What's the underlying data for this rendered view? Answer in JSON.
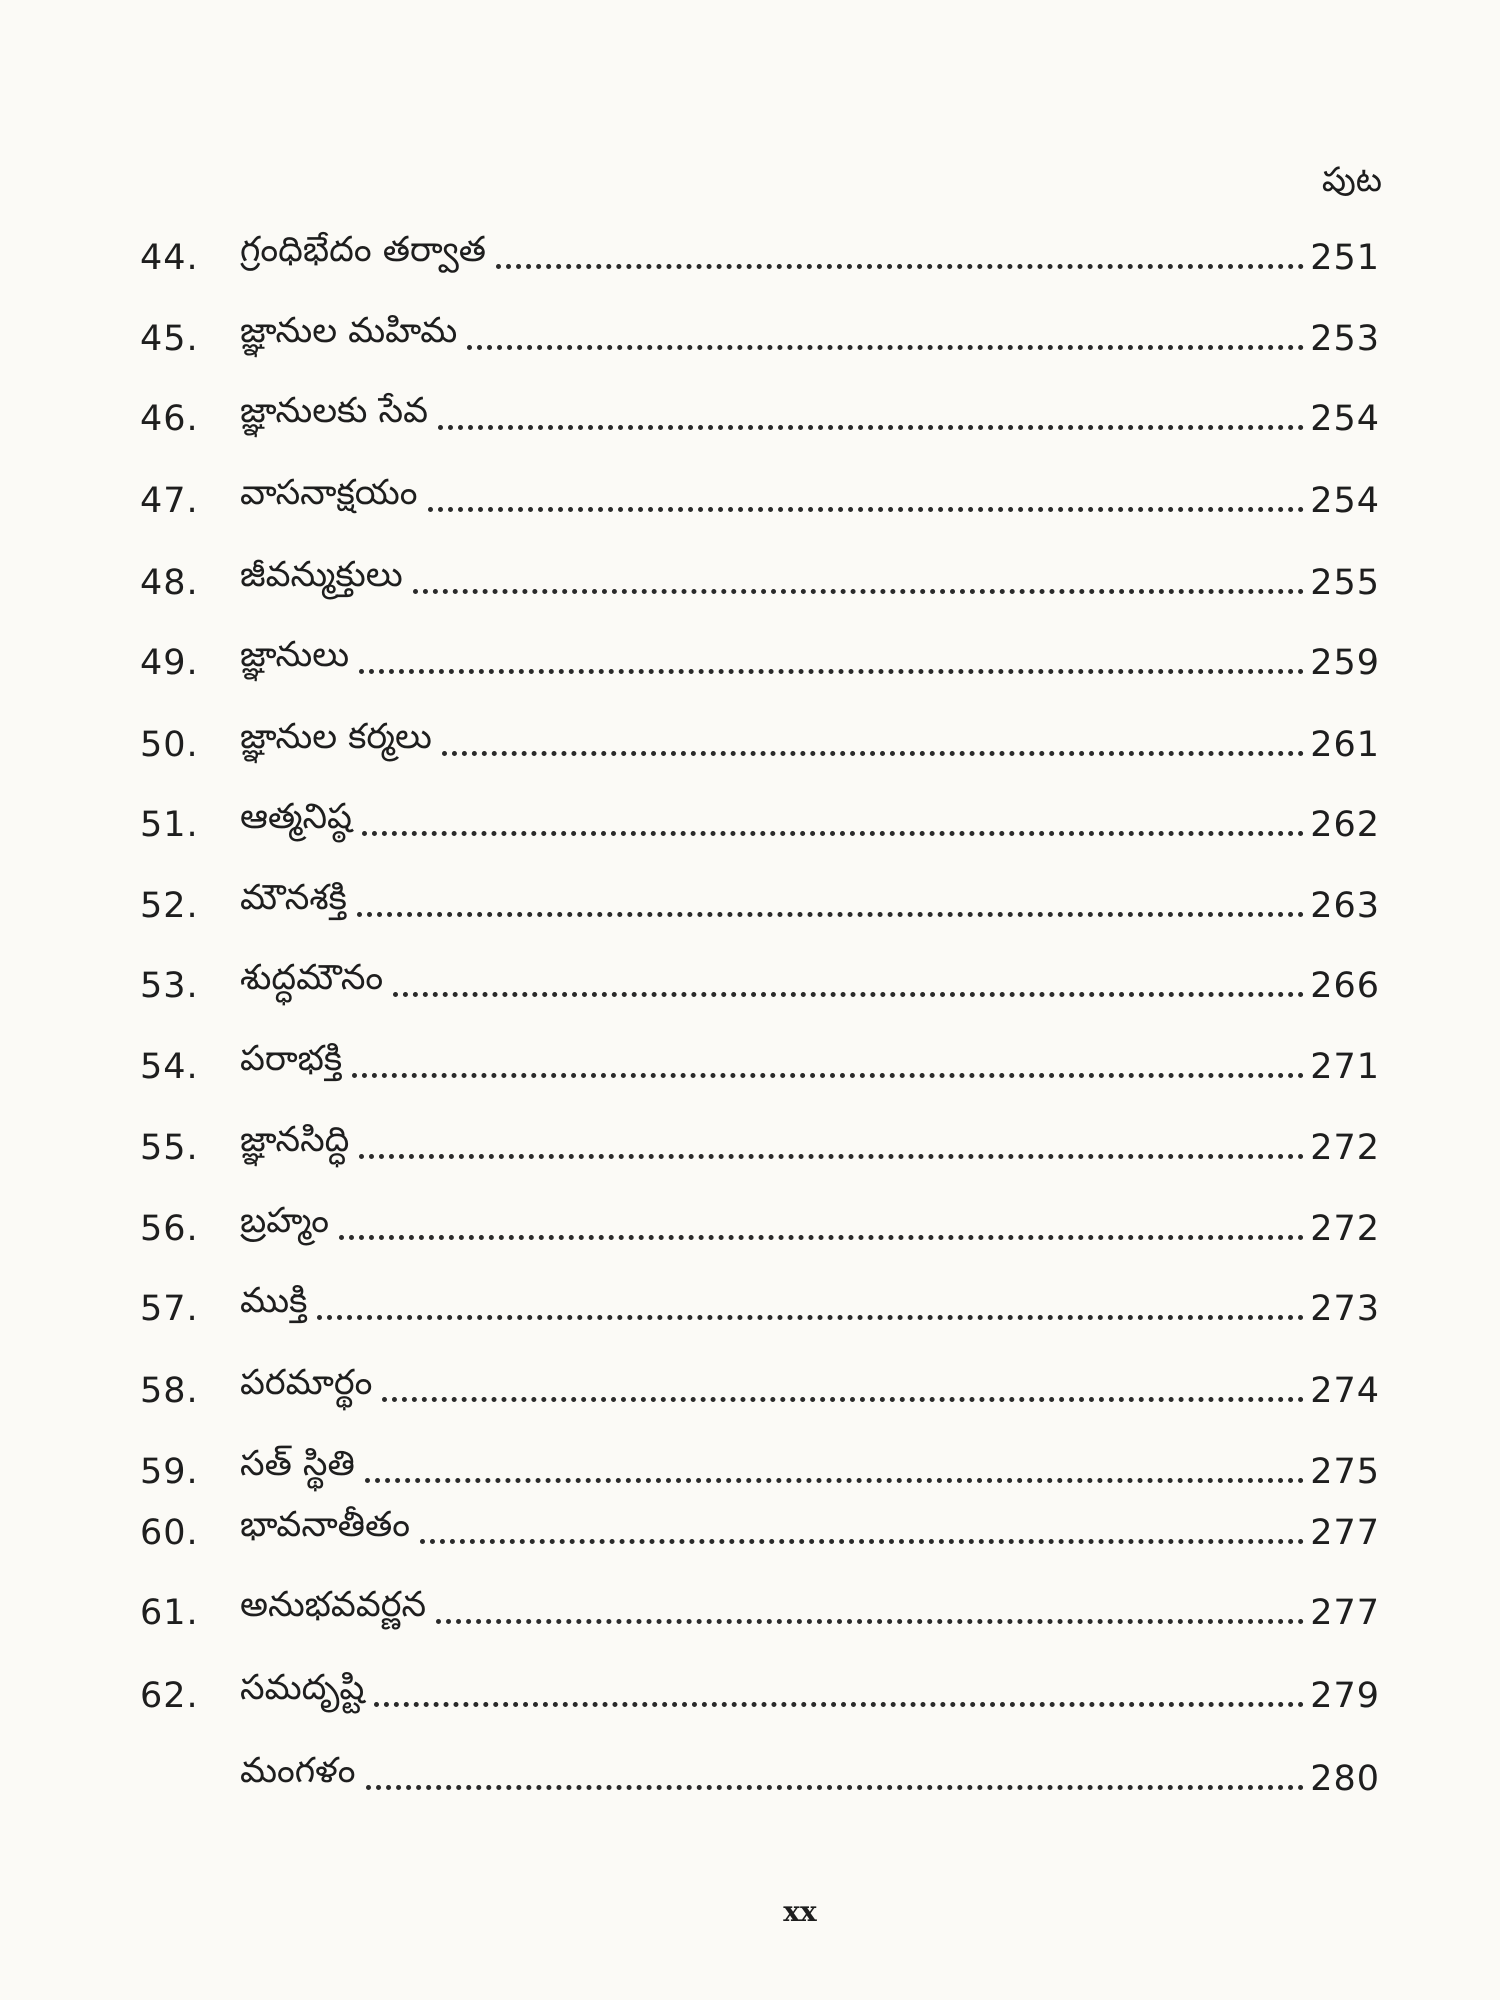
{
  "header": {
    "page_column_label": "పుట"
  },
  "entries": [
    {
      "num": "44.",
      "title": "గ్రంధిభేదం తర్వాత",
      "page": "251"
    },
    {
      "num": "45.",
      "title": "జ్ఞానుల మహిమ",
      "page": "253"
    },
    {
      "num": "46.",
      "title": "జ్ఞానులకు సేవ",
      "page": "254"
    },
    {
      "num": "47.",
      "title": "వాసనాక్షయం",
      "page": "254"
    },
    {
      "num": "48.",
      "title": "జీవన్ముక్తులు",
      "page": "255"
    },
    {
      "num": "49.",
      "title": "జ్ఞానులు",
      "page": "259"
    },
    {
      "num": "50.",
      "title": "జ్ఞానుల కర్మలు",
      "page": "261"
    },
    {
      "num": "51.",
      "title": "ఆత్మనిష్ఠ",
      "page": "262"
    },
    {
      "num": "52.",
      "title": "మౌనశక్తి",
      "page": "263"
    },
    {
      "num": "53.",
      "title": "శుద్ధమౌనం",
      "page": "266"
    },
    {
      "num": "54.",
      "title": "పరాభక్తి",
      "page": "271"
    },
    {
      "num": "55.",
      "title": "జ్ఞానసిద్ధి",
      "page": "272"
    },
    {
      "num": "56.",
      "title": "బ్రహ్మం",
      "page": "272"
    },
    {
      "num": "57.",
      "title": "ముక్తి",
      "page": "273"
    },
    {
      "num": "58.",
      "title": "పరమార్థం",
      "page": "274"
    },
    {
      "num": "59.",
      "title": "సత్ స్థితి",
      "page": "275"
    },
    {
      "num": "60.",
      "title": "భావనాతీతం",
      "page": "277"
    },
    {
      "num": "61.",
      "title": "అనుభవవర్ణన",
      "page": "277"
    },
    {
      "num": "62.",
      "title": "సమదృష్టి",
      "page": "279"
    },
    {
      "num": "",
      "title": "మంగళం",
      "page": "280"
    }
  ],
  "footer": {
    "folio": "xx"
  }
}
